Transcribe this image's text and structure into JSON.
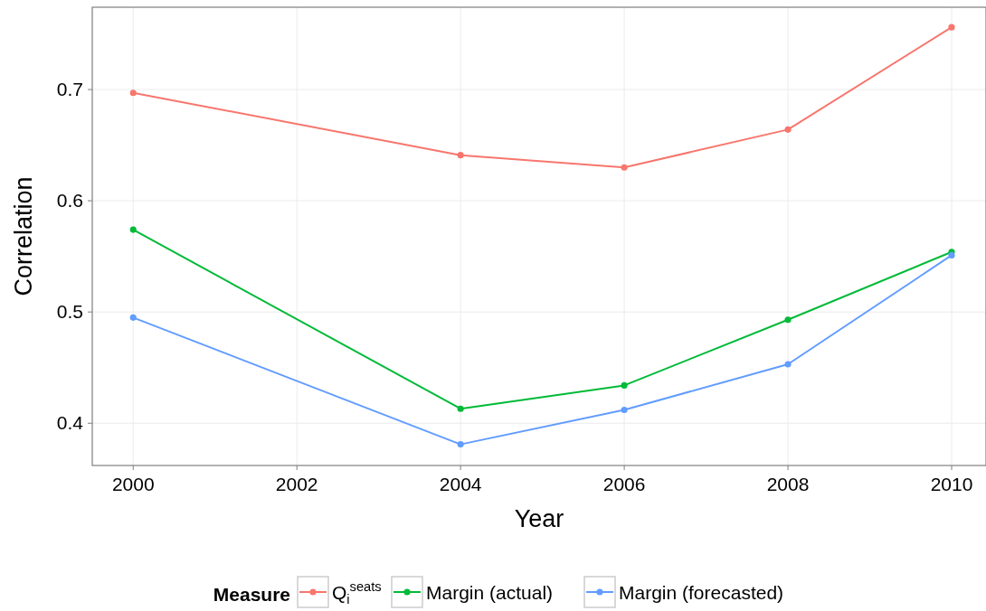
{
  "chart_data": {
    "type": "line",
    "xlabel": "Year",
    "ylabel": "Correlation",
    "legend_title": "Measure",
    "legend": "bottom",
    "grid": true,
    "marker": "circle",
    "line_style": "solid",
    "x": [
      2000,
      2004,
      2006,
      2008,
      2010
    ],
    "xlim": [
      1999.5,
      2010.42
    ],
    "xticks": [
      2000,
      2002,
      2004,
      2006,
      2008,
      2010
    ],
    "ylim": [
      0.362,
      0.774
    ],
    "yticks": [
      0.4,
      0.5,
      0.6,
      0.7
    ],
    "series": [
      {
        "name": "Q$_{i}$$^{seats}$",
        "color": "#f8766d",
        "values": [
          0.697,
          0.641,
          0.63,
          0.664,
          0.756
        ]
      },
      {
        "name": "Margin (actual)",
        "color": "#00ba38",
        "values": [
          0.574,
          0.413,
          0.434,
          0.493,
          0.554
        ]
      },
      {
        "name": "Margin (forecasted)",
        "color": "#619cff",
        "values": [
          0.495,
          0.381,
          0.412,
          0.453,
          0.551
        ]
      }
    ]
  }
}
